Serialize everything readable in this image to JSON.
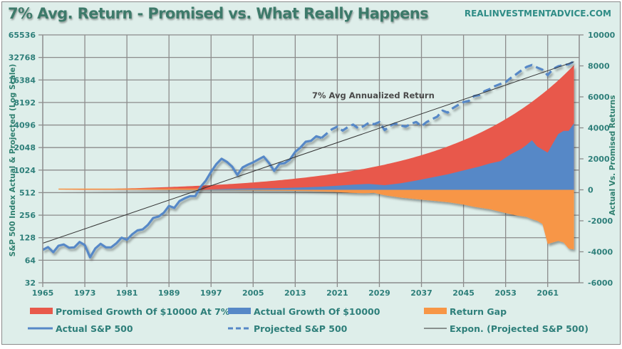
{
  "header": {
    "title": "7% Avg. Return - Promised vs. What Really Happens",
    "site": "REALINVESTMENTADVICE.COM"
  },
  "chart_data": {
    "type": "line",
    "title": "7% Avg. Return - Promised vs. What Really Happens",
    "xlabel": "",
    "ylabel_left": "S&P 500 Index Actual & Projected (Log Scale)",
    "ylabel_right": "Actual Vs. Promised Returns",
    "x_ticks": [
      "1965",
      "1973",
      "1981",
      "1989",
      "1997",
      "2005",
      "2013",
      "2021",
      "2029",
      "2037",
      "2045",
      "2053",
      "2061"
    ],
    "xlim": [
      1965,
      2067
    ],
    "y_left_ticks": [
      "32",
      "64",
      "128",
      "256",
      "512",
      "1024",
      "2048",
      "4096",
      "8192",
      "16384",
      "32768",
      "65536"
    ],
    "y_left_range": [
      32,
      65536
    ],
    "y_left_scale": "log2",
    "y_right_ticks": [
      "-6000",
      "-4000",
      "-2000",
      "0",
      "2000",
      "4000",
      "6000",
      "8000",
      "10000"
    ],
    "y_right_range": [
      -6000,
      10000
    ],
    "grid": true,
    "legend_position": "bottom",
    "annotation": "7% Avg Annualized Return",
    "colors": {
      "promised": "#e8594b",
      "actual_growth": "#5688c7",
      "return_gap": "#f79646",
      "sp500": "#5688c7",
      "trend": "#333333",
      "grid": "#8c8c8c"
    },
    "legend": [
      {
        "label": "Promised Growth Of $10000 At 7%",
        "kind": "area",
        "color": "#e8594b"
      },
      {
        "label": "Actual Growth Of $10000",
        "kind": "area",
        "color": "#5688c7"
      },
      {
        "label": "Return Gap",
        "kind": "area",
        "color": "#f79646"
      },
      {
        "label": "Actual S&P 500",
        "kind": "line",
        "color": "#5688c7"
      },
      {
        "label": "Projected S&P 500",
        "kind": "dashed",
        "color": "#5688c7"
      },
      {
        "label": "Expon. (Projected S&P 500)",
        "kind": "thin",
        "color": "#333333"
      }
    ],
    "series": [
      {
        "name": "Actual S&P 500",
        "axis": "left",
        "x": [
          1965,
          1966,
          1967,
          1968,
          1969,
          1970,
          1971,
          1972,
          1973,
          1974,
          1975,
          1976,
          1977,
          1978,
          1979,
          1980,
          1981,
          1982,
          1983,
          1984,
          1985,
          1986,
          1987,
          1988,
          1989,
          1990,
          1991,
          1992,
          1993,
          1994,
          1995,
          1996,
          1997,
          1998,
          1999,
          2000,
          2001,
          2002,
          2003,
          2004,
          2005,
          2006,
          2007,
          2008,
          2009,
          2010,
          2011,
          2012,
          2013,
          2014,
          2015,
          2016,
          2017,
          2018
        ],
        "values": [
          88,
          96,
          82,
          100,
          104,
          94,
          95,
          112,
          102,
          70,
          92,
          106,
          95,
          95,
          108,
          128,
          120,
          142,
          160,
          165,
          190,
          235,
          245,
          275,
          340,
          320,
          395,
          430,
          460,
          460,
          610,
          740,
          970,
          1230,
          1450,
          1320,
          1140,
          880,
          1110,
          1210,
          1300,
          1420,
          1550,
          1280,
          1000,
          1240,
          1270,
          1420,
          1800,
          2050,
          2450,
          2520,
          2900,
          2750
        ]
      },
      {
        "name": "Projected S&P 500",
        "axis": "left",
        "x": [
          2018,
          2019,
          2020,
          2021,
          2022,
          2023,
          2024,
          2025,
          2026,
          2027,
          2028,
          2029,
          2030,
          2031,
          2032,
          2033,
          2034,
          2035,
          2036,
          2037,
          2038,
          2039,
          2040,
          2041,
          2042,
          2043,
          2044,
          2045,
          2046,
          2047,
          2048,
          2049,
          2050,
          2051,
          2052,
          2053,
          2054,
          2055,
          2056,
          2057,
          2058,
          2059,
          2060,
          2061,
          2062,
          2063,
          2064,
          2065,
          2066
        ],
        "values": [
          2750,
          3150,
          3600,
          3900,
          3450,
          3850,
          4150,
          3700,
          3950,
          4400,
          4200,
          4500,
          3500,
          4000,
          4300,
          4050,
          3900,
          4250,
          4500,
          3950,
          4500,
          4900,
          5300,
          6400,
          6000,
          6900,
          7600,
          8300,
          8600,
          10000,
          10300,
          11600,
          12400,
          13600,
          14500,
          15300,
          17500,
          19500,
          22000,
          24500,
          26000,
          24000,
          22500,
          19000,
          23000,
          25000,
          26000,
          26500,
          29000
        ]
      },
      {
        "name": "Expon. (Projected S&P 500)",
        "axis": "left",
        "x": [
          1965,
          2066
        ],
        "values": [
          108,
          28700
        ]
      },
      {
        "name": "Promised Growth Of $10000 At 7%",
        "axis": "right",
        "x": [
          1965,
          2066
        ],
        "growth_rate": 0.07,
        "note": "exponential 7% compounding; plotted as gain over start reaching ~8000 at end"
      },
      {
        "name": "Actual Growth Of $10000",
        "axis": "right",
        "x": [
          1995,
          2000,
          2005,
          2010,
          2015,
          2018,
          2021,
          2024,
          2027,
          2030,
          2033,
          2036,
          2039,
          2042,
          2045,
          2048,
          2050,
          2052,
          2054,
          2056,
          2057,
          2058,
          2059,
          2060,
          2061,
          2062,
          2063,
          2064,
          2065,
          2066
        ],
        "values": [
          0,
          60,
          90,
          110,
          160,
          200,
          260,
          330,
          380,
          300,
          420,
          600,
          800,
          1000,
          1250,
          1500,
          1700,
          1850,
          2300,
          2650,
          2900,
          3200,
          2800,
          2600,
          2400,
          3000,
          3600,
          3800,
          3800,
          4300
        ]
      },
      {
        "name": "Return Gap",
        "axis": "right",
        "x": [
          1968,
          1990,
          1995,
          2000,
          2005,
          2010,
          2015,
          2020,
          2024,
          2026,
          2028,
          2030,
          2033,
          2036,
          2039,
          2042,
          2045,
          2047,
          2050,
          2053,
          2055,
          2057,
          2058,
          2059,
          2060,
          2061,
          2062,
          2063,
          2064,
          2065,
          2066
        ],
        "values": [
          0,
          0,
          -5,
          -20,
          -40,
          -60,
          -80,
          -130,
          -200,
          -220,
          -200,
          -350,
          -500,
          -600,
          -700,
          -800,
          -950,
          -1100,
          -1250,
          -1500,
          -1650,
          -1750,
          -1900,
          -2000,
          -2200,
          -3500,
          -3400,
          -3300,
          -3400,
          -3800,
          -3850
        ]
      }
    ]
  }
}
